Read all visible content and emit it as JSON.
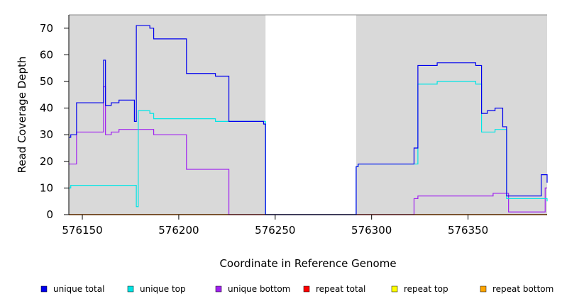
{
  "chart_data": {
    "type": "line",
    "title": "",
    "xlabel": "Coordinate in Reference Genome",
    "ylabel": "Read Coverage Depth",
    "xlim": [
      576143,
      576391
    ],
    "ylim": [
      0,
      75
    ],
    "x_ticks": [
      576150,
      576200,
      576250,
      576300,
      576350
    ],
    "x_tick_labels": [
      "576150",
      "576200",
      "576250",
      "576300",
      "576350"
    ],
    "y_ticks": [
      0,
      10,
      20,
      30,
      40,
      50,
      60,
      70
    ],
    "y_tick_labels": [
      "0",
      "10",
      "20",
      "30",
      "40",
      "50",
      "60",
      "70"
    ],
    "grid": false,
    "legend_position": "bottom",
    "shaded_regions": [
      [
        576143,
        576245
      ],
      [
        576292,
        576391
      ]
    ],
    "shade_color": "#d9d9d9",
    "series": [
      {
        "name": "unique total",
        "color": "#0000ee",
        "points": [
          [
            576143,
            29
          ],
          [
            576144,
            30
          ],
          [
            576147,
            42
          ],
          [
            576154,
            42
          ],
          [
            576155,
            42
          ],
          [
            576161,
            58
          ],
          [
            576162,
            41
          ],
          [
            576165,
            42
          ],
          [
            576169,
            43
          ],
          [
            576177,
            35
          ],
          [
            576178,
            71
          ],
          [
            576185,
            70
          ],
          [
            576187,
            66
          ],
          [
            576204,
            53
          ],
          [
            576219,
            52
          ],
          [
            576226,
            35
          ],
          [
            576244,
            34
          ],
          [
            576245,
            0
          ],
          [
            576291,
            0
          ],
          [
            576292,
            18
          ],
          [
            576293,
            19
          ],
          [
            576322,
            25
          ],
          [
            576324,
            56
          ],
          [
            576334,
            57
          ],
          [
            576354,
            56
          ],
          [
            576357,
            38
          ],
          [
            576360,
            39
          ],
          [
            576364,
            40
          ],
          [
            576368,
            33
          ],
          [
            576370,
            7
          ],
          [
            576388,
            15
          ],
          [
            576391,
            12
          ]
        ]
      },
      {
        "name": "unique top",
        "color": "#00e5e5",
        "points": [
          [
            576143,
            10
          ],
          [
            576144,
            11
          ],
          [
            576178,
            3
          ],
          [
            576179,
            39
          ],
          [
            576185,
            38
          ],
          [
            576187,
            36
          ],
          [
            576219,
            35
          ],
          [
            576226,
            35
          ],
          [
            576245,
            0
          ],
          [
            576291,
            0
          ],
          [
            576292,
            18
          ],
          [
            576293,
            19
          ],
          [
            576324,
            49
          ],
          [
            576334,
            50
          ],
          [
            576354,
            49
          ],
          [
            576357,
            31
          ],
          [
            576364,
            32
          ],
          [
            576368,
            32
          ],
          [
            576370,
            6
          ],
          [
            576390,
            6
          ],
          [
            576391,
            5
          ]
        ]
      },
      {
        "name": "unique bottom",
        "color": "#a020f0",
        "points": [
          [
            576143,
            19
          ],
          [
            576147,
            31
          ],
          [
            576154,
            31
          ],
          [
            576161,
            48
          ],
          [
            576162,
            30
          ],
          [
            576165,
            31
          ],
          [
            576169,
            32
          ],
          [
            576187,
            30
          ],
          [
            576204,
            17
          ],
          [
            576226,
            0
          ],
          [
            576291,
            0
          ],
          [
            576322,
            6
          ],
          [
            576324,
            7
          ],
          [
            576358,
            7
          ],
          [
            576363,
            8
          ],
          [
            576371,
            1
          ],
          [
            576388,
            1
          ],
          [
            576390,
            10
          ]
        ]
      },
      {
        "name": "repeat total",
        "color": "#ff0000",
        "points": [
          [
            576143,
            0
          ],
          [
            576391,
            0
          ]
        ]
      },
      {
        "name": "repeat top",
        "color": "#ffff00",
        "points": [
          [
            576143,
            0
          ],
          [
            576391,
            0
          ]
        ]
      },
      {
        "name": "repeat bottom",
        "color": "#ffa500",
        "points": [
          [
            576143,
            0
          ],
          [
            576391,
            0
          ]
        ]
      }
    ]
  }
}
